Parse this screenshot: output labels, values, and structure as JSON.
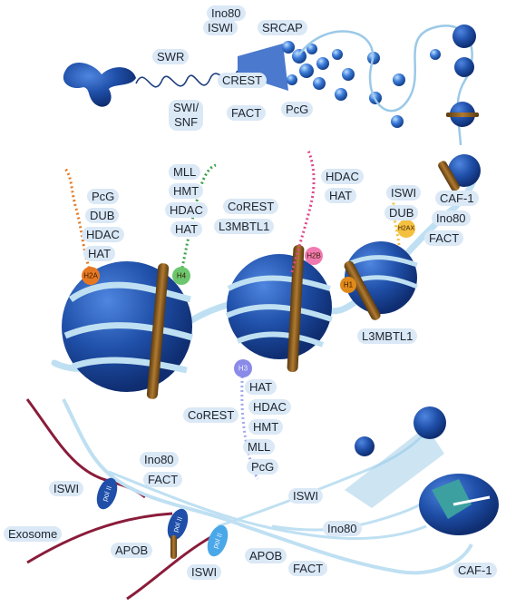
{
  "top_labels": {
    "ino80": "Ino80",
    "iswi": "ISWI",
    "srcap": "SRCAP",
    "swr": "SWR",
    "crest": "CREST",
    "swi_snf": "SWI/\nSNF",
    "fact": "FACT",
    "pcg": "PcG"
  },
  "h2a_labels": [
    "PcG",
    "DUB",
    "HDAC",
    "HAT"
  ],
  "h4_labels": [
    "MLL",
    "HMT",
    "HDAC",
    "HAT"
  ],
  "middle_labels": [
    "CoREST",
    "L3MBTL1"
  ],
  "h2b_labels": [
    "HDAC",
    "HAT"
  ],
  "right_labels": {
    "iswi": "ISWI",
    "caf1": "CAF-1",
    "dub": "DUB",
    "ino80": "Ino80",
    "fact": "FACT",
    "l3mbtl1": "L3MBTL1"
  },
  "h3_labels": [
    "HAT",
    "HDAC",
    "HMT",
    "MLL",
    "PcG"
  ],
  "h3_corest": "CoREST",
  "histone_tags": {
    "h2a": "H2A",
    "h4": "H4",
    "h2b": "H2B",
    "h2ax": "H2AX",
    "h1": "H1",
    "h3": "H3"
  },
  "bottom_labels": {
    "ino80": "Ino80",
    "fact": "FACT",
    "iswi_left": "ISWI",
    "exosome": "Exosome",
    "apob_left": "APOB",
    "iswi_bottom": "ISWI",
    "apob_mid": "APOB",
    "fact_mid": "FACT",
    "iswi_right": "ISWI",
    "ino80_right": "Ino80",
    "caf1": "CAF-1"
  },
  "pol_text": "pol II",
  "colors": {
    "nucleosome": "#1f4fa8",
    "dna": "#bfe0f2",
    "linker_histone": "#8a5a1a",
    "label_bg": "#dbe8f5",
    "rna": "#8a1c3a",
    "h2a": "#e67822",
    "h4": "#3ca04a",
    "h2b": "#e0458a",
    "h3": "#7a7ae0",
    "h2ax": "#f4c040"
  }
}
